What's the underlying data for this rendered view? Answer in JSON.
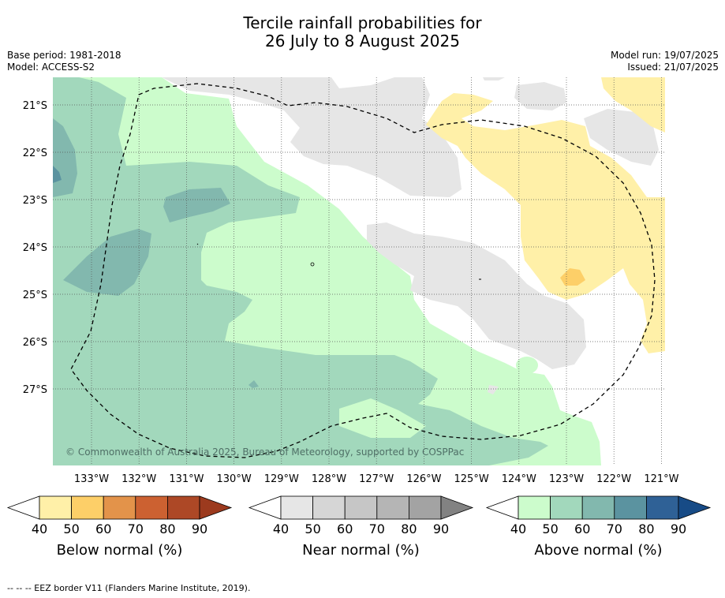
{
  "title": {
    "line1": "Tercile rainfall probabilities for",
    "line2": "26 July to 8 August 2025"
  },
  "meta": {
    "base_period": "Base period: 1981-2018",
    "model": "Model: ACCESS-S2",
    "model_run": "Model run: 19/07/2025",
    "issued": "Issued: 21/07/2025"
  },
  "map": {
    "lat_labels": [
      "21°S",
      "22°S",
      "23°S",
      "24°S",
      "25°S",
      "26°S",
      "27°S"
    ],
    "lon_labels": [
      "133°W",
      "132°W",
      "131°W",
      "130°W",
      "129°W",
      "128°W",
      "127°W",
      "126°W",
      "125°W",
      "124°W",
      "123°W",
      "122°W",
      "121°W"
    ],
    "copyright": "© Commonwealth of Australia 2025, Bureau of Meteorology, supported by COSPPac",
    "gridlines": true,
    "boundary_style": "dashed"
  },
  "colorbars": [
    {
      "label": "Below normal (%)",
      "ticks": [
        "40",
        "50",
        "60",
        "70",
        "80",
        "90"
      ],
      "colors": [
        "#fff0a8",
        "#fdcf68",
        "#e3934a",
        "#cc6131",
        "#ad4826",
        "#9c3a1e"
      ]
    },
    {
      "label": "Near normal (%)",
      "ticks": [
        "40",
        "50",
        "60",
        "70",
        "80",
        "90"
      ],
      "colors": [
        "#e6e6e6",
        "#d6d6d6",
        "#c6c6c6",
        "#b5b5b5",
        "#a3a3a3",
        "#828282"
      ]
    },
    {
      "label": "Above normal (%)",
      "ticks": [
        "40",
        "50",
        "60",
        "70",
        "80",
        "90"
      ],
      "colors": [
        "#ccfccc",
        "#a2d8bc",
        "#82b8ae",
        "#5b93a0",
        "#2f6196",
        "#174b86"
      ]
    }
  ],
  "footnote": "--  --  -- EEZ border V11 (Flanders Marine Institute, 2019).",
  "colors": {
    "below_40": "#fff0a8",
    "below_50": "#fdcf68",
    "near_40": "#e6e6e6",
    "above_40": "#ccfccc",
    "above_50": "#a2d8bc",
    "above_60": "#82b8ae",
    "above_70": "#5b93a0"
  }
}
